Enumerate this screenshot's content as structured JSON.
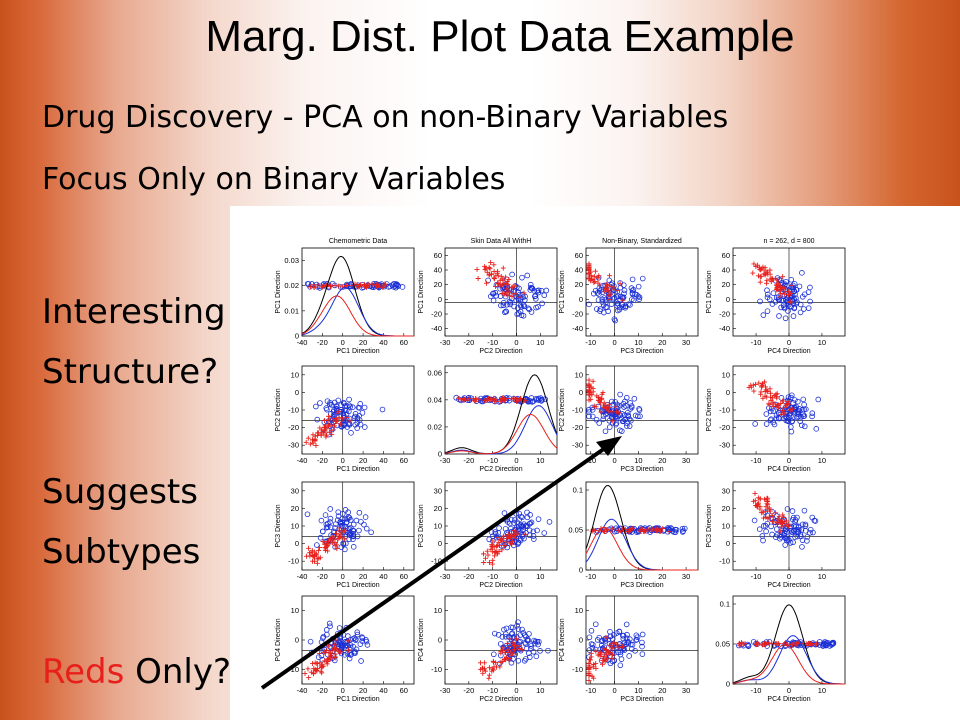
{
  "slide": {
    "title": "Marg. Dist. Plot Data Example",
    "line1": "Drug Discovery  - PCA on non-Binary Variables",
    "line2": "Focus Only on Binary Variables",
    "side": [
      "Interesting",
      "Structure?",
      "",
      "Suggests",
      "Subtypes",
      "",
      ""
    ],
    "reds_word": "Reds",
    "only_word": " Only?",
    "red_color": "#e8201c"
  },
  "chart_data": {
    "type": "scatter",
    "layout": "4x4 scatterplot matrix with marginal density curves on diagonal",
    "panel_titles": [
      "Chemometric Data",
      "Skin Data All WithH",
      "Non-Binary, Standardized",
      "n = 262, d = 800"
    ],
    "xlabels": [
      "PC1 Direction",
      "PC2 Direction",
      "PC3 Direction",
      "PC4 Direction"
    ],
    "ylabels": [
      "PC1 Direction",
      "PC2 Direction",
      "PC3 Direction",
      "PC4 Direction"
    ],
    "xticks": [
      [
        "-40",
        "-20",
        "0",
        "20",
        "40",
        "60"
      ],
      [
        "-30",
        "-20",
        "-10",
        "0",
        "10"
      ],
      [
        "-10",
        "0",
        "10",
        "20",
        "30"
      ],
      [
        "-10",
        "0",
        "10"
      ]
    ],
    "xranges": [
      [
        -40,
        70
      ],
      [
        -30,
        17
      ],
      [
        -12,
        35
      ],
      [
        -17,
        17
      ]
    ],
    "yticks_offdiag": [
      [
        "-40",
        "-20",
        "0",
        "20",
        "40",
        "60"
      ],
      [
        "-30",
        "-20",
        "-10",
        "0",
        "10"
      ],
      [
        "-10",
        "0",
        "10",
        "20",
        "30"
      ],
      [
        "-10",
        "0",
        "10"
      ]
    ],
    "yticks_diag": [
      [
        "0",
        "0.01",
        "0.02",
        "0.03"
      ],
      [
        "0",
        "0.02",
        "0.04",
        "0.06"
      ],
      [
        "0",
        "0.05",
        "0.1"
      ],
      [
        "0",
        "0.05",
        "0.1"
      ]
    ],
    "diag_ymax": [
      0.035,
      0.065,
      0.11,
      0.11
    ],
    "diag_jitter_level": [
      0.02,
      0.04,
      0.05,
      0.05
    ],
    "series": [
      {
        "name": "",
        "color": "#1a2fd6",
        "marker": "circle"
      },
      {
        "name": "",
        "color": "#e8201c",
        "marker": "plus"
      },
      {
        "name": "",
        "color": "#000000",
        "marker": "line"
      }
    ],
    "annotation": "arrow from Reds Only? to PC2 vs PC3 panel"
  }
}
